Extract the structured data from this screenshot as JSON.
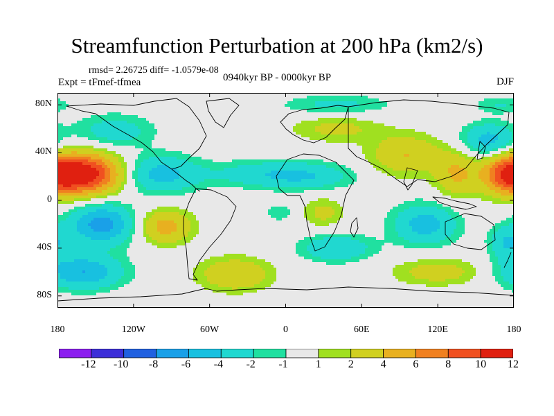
{
  "title": "Streamfunction Perturbation at 200 hPa (km2/s)",
  "stats": "rmsd= 2.26725 diff= -1.0579e-08",
  "experiment": "Expt = tFmef-tfmea",
  "period": "0940kyr BP - 0000kyr BP",
  "season": "DJF",
  "chart_data": {
    "type": "heatmap",
    "projection": "cylindrical-equidistant",
    "variable": "Streamfunction Perturbation at 200 hPa",
    "units": "km2/s",
    "lon_range": [
      -180,
      180
    ],
    "lat_range": [
      -90,
      90
    ],
    "x_ticks": [
      {
        "lon": -180,
        "label": "180"
      },
      {
        "lon": -120,
        "label": "120W"
      },
      {
        "lon": -60,
        "label": "60W"
      },
      {
        "lon": 0,
        "label": "0"
      },
      {
        "lon": 60,
        "label": "60E"
      },
      {
        "lon": 120,
        "label": "120E"
      },
      {
        "lon": 180,
        "label": "180"
      }
    ],
    "y_ticks": [
      {
        "lat": 80,
        "label": "80N"
      },
      {
        "lat": 40,
        "label": "40N"
      },
      {
        "lat": 0,
        "label": "0"
      },
      {
        "lat": -40,
        "label": "40S"
      },
      {
        "lat": -80,
        "label": "80S"
      }
    ],
    "levels": [
      -12,
      -10,
      -8,
      -6,
      -4,
      -2,
      -1,
      1,
      2,
      4,
      6,
      8,
      10,
      12
    ],
    "colorbar_labels": [
      "-12",
      "-10",
      "-8",
      "-6",
      "-4",
      "-2",
      "-1",
      "1",
      "2",
      "4",
      "6",
      "8",
      "10",
      "12"
    ],
    "colors": [
      "#8c1eef",
      "#3c2ed8",
      "#2060e0",
      "#1aa0e8",
      "#18c0e0",
      "#20d8d0",
      "#20e0a0",
      "#e8e8e8",
      "#a0e020",
      "#d0d020",
      "#e8b020",
      "#f08020",
      "#f05020",
      "#e02010"
    ],
    "field_centers": [
      {
        "lon": -160,
        "lat": 22,
        "amp": 12,
        "sx": 22,
        "sy": 12
      },
      {
        "lon": -145,
        "lat": -20,
        "amp": -7,
        "sx": 18,
        "sy": 12
      },
      {
        "lon": -100,
        "lat": 22,
        "amp": -5,
        "sx": 22,
        "sy": 11
      },
      {
        "lon": -95,
        "lat": -22,
        "amp": 5,
        "sx": 15,
        "sy": 10
      },
      {
        "lon": -160,
        "lat": -60,
        "amp": -6,
        "sx": 22,
        "sy": 10
      },
      {
        "lon": -135,
        "lat": 58,
        "amp": -3,
        "sx": 22,
        "sy": 10
      },
      {
        "lon": -40,
        "lat": -62,
        "amp": 4,
        "sx": 20,
        "sy": 10
      },
      {
        "lon": -20,
        "lat": 22,
        "amp": -3,
        "sx": 30,
        "sy": 8
      },
      {
        "lon": 20,
        "lat": 20,
        "amp": -3,
        "sx": 25,
        "sy": 8
      },
      {
        "lon": 40,
        "lat": 80,
        "amp": -2.5,
        "sx": 30,
        "sy": 6
      },
      {
        "lon": 40,
        "lat": 60,
        "amp": 2.5,
        "sx": 25,
        "sy": 8
      },
      {
        "lon": 40,
        "lat": -40,
        "amp": -4,
        "sx": 20,
        "sy": 8
      },
      {
        "lon": 30,
        "lat": -10,
        "amp": 2.5,
        "sx": 12,
        "sy": 9
      },
      {
        "lon": -5,
        "lat": -10,
        "amp": -2,
        "sx": 8,
        "sy": 5
      },
      {
        "lon": 110,
        "lat": -20,
        "amp": -5,
        "sx": 18,
        "sy": 12
      },
      {
        "lon": 95,
        "lat": 38,
        "amp": 4,
        "sx": 20,
        "sy": 12
      },
      {
        "lon": 135,
        "lat": 22,
        "amp": 4,
        "sx": 12,
        "sy": 14
      },
      {
        "lon": 175,
        "lat": 22,
        "amp": 6,
        "sx": 14,
        "sy": 12
      },
      {
        "lon": 160,
        "lat": 50,
        "amp": -5,
        "sx": 15,
        "sy": 10
      },
      {
        "lon": 120,
        "lat": -60,
        "amp": 3,
        "sx": 25,
        "sy": 8
      },
      {
        "lon": 175,
        "lat": -35,
        "amp": -4,
        "sx": 10,
        "sy": 10
      },
      {
        "lon": 170,
        "lat": 80,
        "amp": -2,
        "sx": 15,
        "sy": 5
      }
    ]
  }
}
